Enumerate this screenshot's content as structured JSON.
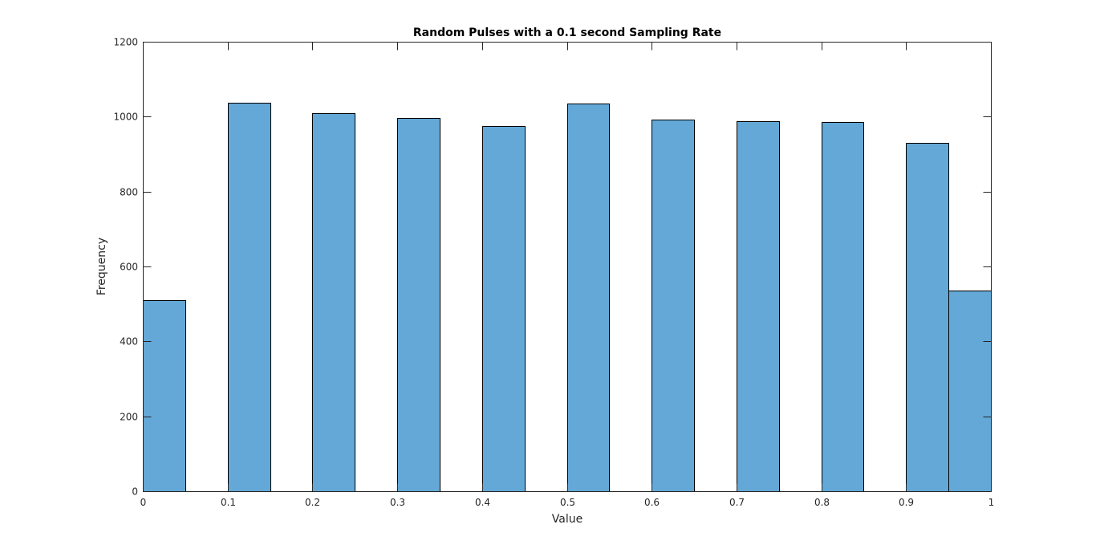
{
  "chart_data": {
    "type": "bar",
    "title": "Random Pulses with a 0.1 second Sampling Rate",
    "xlabel": "Value",
    "ylabel": "Frequency",
    "xlim": [
      0,
      1
    ],
    "ylim": [
      0,
      1200
    ],
    "x_ticks": [
      "0",
      "0.1",
      "0.2",
      "0.3",
      "0.4",
      "0.5",
      "0.6",
      "0.7",
      "0.8",
      "0.9",
      "1"
    ],
    "y_ticks": [
      "0",
      "200",
      "400",
      "600",
      "800",
      "1000",
      "1200"
    ],
    "bars": [
      {
        "x0": 0.0,
        "x1": 0.05,
        "value": 510
      },
      {
        "x0": 0.1,
        "x1": 0.15,
        "value": 1038
      },
      {
        "x0": 0.2,
        "x1": 0.25,
        "value": 1010
      },
      {
        "x0": 0.3,
        "x1": 0.35,
        "value": 997
      },
      {
        "x0": 0.4,
        "x1": 0.45,
        "value": 976
      },
      {
        "x0": 0.5,
        "x1": 0.55,
        "value": 1036
      },
      {
        "x0": 0.6,
        "x1": 0.65,
        "value": 993
      },
      {
        "x0": 0.7,
        "x1": 0.75,
        "value": 987
      },
      {
        "x0": 0.8,
        "x1": 0.85,
        "value": 985
      },
      {
        "x0": 0.9,
        "x1": 0.95,
        "value": 929
      },
      {
        "x0": 0.95,
        "x1": 1.0,
        "value": 535
      }
    ],
    "bar_color": "#64a8d7",
    "bar_edge_color": "#000000",
    "grid": false,
    "legend": "none"
  }
}
